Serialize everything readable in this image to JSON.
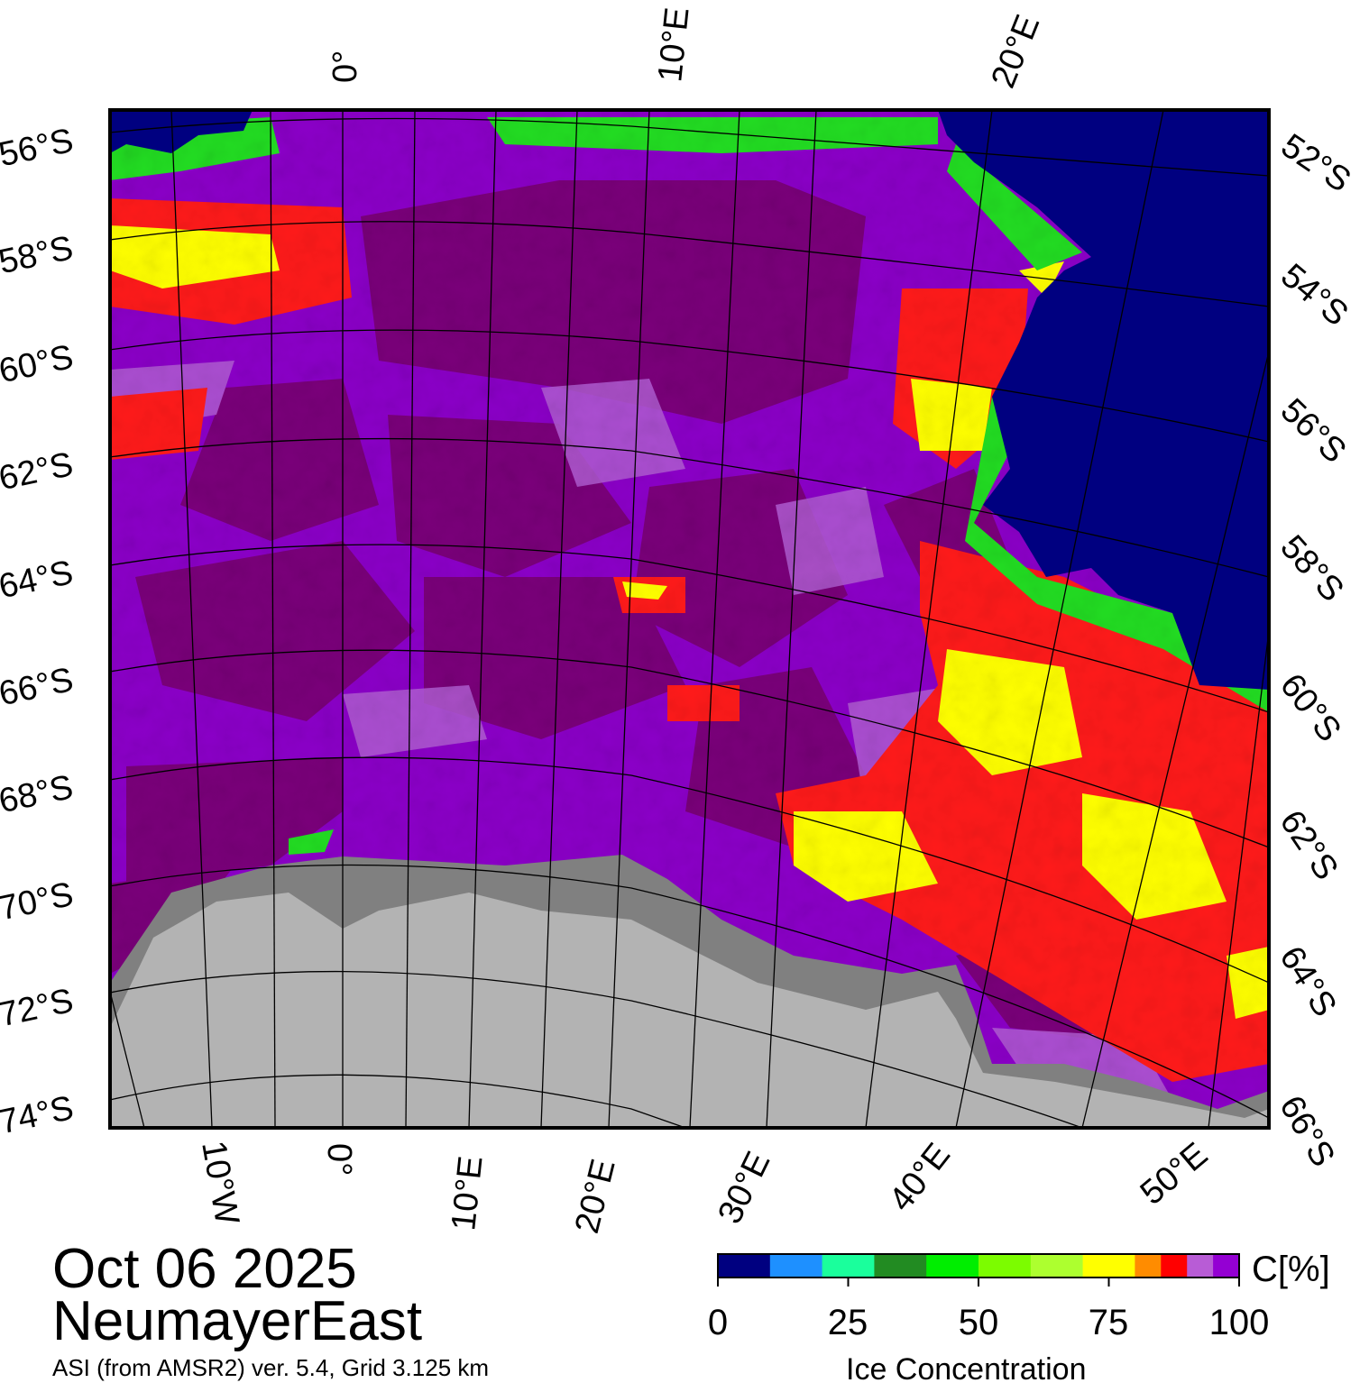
{
  "title": {
    "date": "Oct 06 2025",
    "region": "NeumayerEast",
    "subtitle": "ASI (from AMSR2) ver. 5.4,  Grid 3.125 km"
  },
  "legend": {
    "unit": "C[%]",
    "label": "Ice Concentration",
    "ticks": [
      "0",
      "25",
      "50",
      "75",
      "100"
    ],
    "colors": [
      "#000080",
      "#1e90ff",
      "#1aff9c",
      "#228b22",
      "#00ee00",
      "#7cfc00",
      "#adff2f",
      "#ffff00",
      "#ff8c00",
      "#ff0000",
      "#b85cd6",
      "#9400d3",
      "#6b006b"
    ]
  },
  "map": {
    "colors": {
      "ocean": "#000080",
      "ice_full": "#7a007a",
      "ice_high": "#8b00c8",
      "ice_mid": "#b05cd2",
      "ice_low_red": "#ff1a1a",
      "ice_low_yellow": "#ffff00",
      "ice_low_green": "#22dd22",
      "shelf": "#808080",
      "land": "#b3b3b3",
      "grid": "#000000"
    },
    "left_lat_labels": [
      "56°S",
      "58°S",
      "60°S",
      "62°S",
      "64°S",
      "66°S",
      "68°S",
      "70°S",
      "72°S",
      "74°S"
    ],
    "right_lat_labels": [
      "52°S",
      "54°S",
      "56°S",
      "58°S",
      "60°S",
      "62°S",
      "64°S",
      "66°S"
    ],
    "top_lon_labels": [
      "0°",
      "10°E",
      "20°E"
    ],
    "bottom_lon_labels": [
      "10°W",
      "0°",
      "10°E",
      "20°E",
      "30°E",
      "40°E",
      "50°E"
    ]
  }
}
